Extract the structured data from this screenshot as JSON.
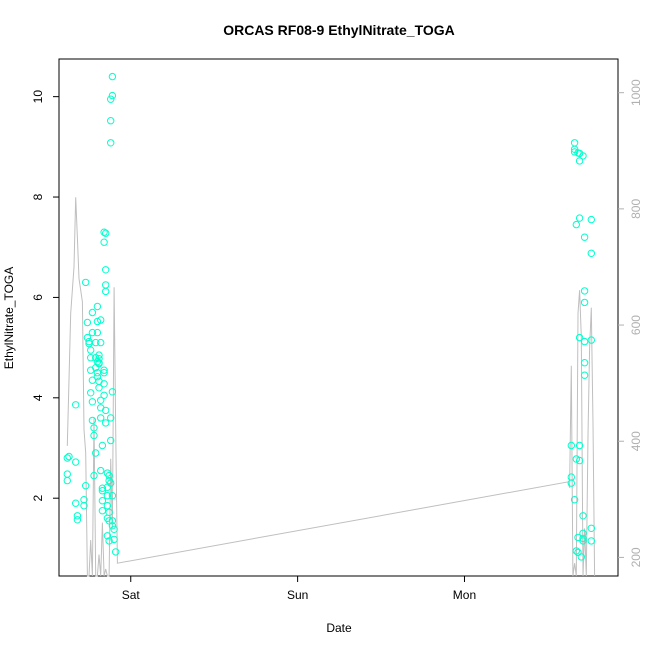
{
  "chart_data": {
    "type": "scatter",
    "title": "ORCAS RF08-9 EthylNitrate_TOGA",
    "xlabel": "Date",
    "ylabel": "EthylNitrate_TOGA",
    "x_unit": "days",
    "x_range": [
      -0.43,
      2.92
    ],
    "x_ticks": [
      {
        "value": 0,
        "label": "Sat"
      },
      {
        "value": 1,
        "label": "Sun"
      },
      {
        "value": 2,
        "label": "Mon"
      }
    ],
    "ylim": [
      0.45,
      10.75
    ],
    "y_ticks": [
      2,
      4,
      6,
      8,
      10
    ],
    "y2_ticks": [
      200,
      400,
      600,
      800,
      1000
    ],
    "y2_range": [
      1058,
      168
    ],
    "colors": {
      "points": "#00ffcc",
      "line": "#bfbfbf",
      "right_axis": "#b0b0b0"
    },
    "series": [
      {
        "type": "scatter",
        "points": [
          [
            -0.38,
            2.8
          ],
          [
            -0.38,
            2.48
          ],
          [
            -0.38,
            2.35
          ],
          [
            -0.37,
            2.83
          ],
          [
            -0.33,
            3.86
          ],
          [
            -0.33,
            2.72
          ],
          [
            -0.33,
            1.9
          ],
          [
            -0.32,
            1.65
          ],
          [
            -0.32,
            1.57
          ],
          [
            -0.28,
            1.97
          ],
          [
            -0.28,
            1.85
          ],
          [
            -0.27,
            2.25
          ],
          [
            -0.27,
            6.3
          ],
          [
            -0.26,
            5.5
          ],
          [
            -0.26,
            5.2
          ],
          [
            -0.25,
            5.12
          ],
          [
            -0.25,
            5.08
          ],
          [
            -0.24,
            4.95
          ],
          [
            -0.24,
            4.8
          ],
          [
            -0.24,
            4.55
          ],
          [
            -0.24,
            4.1
          ],
          [
            -0.23,
            5.3
          ],
          [
            -0.23,
            5.7
          ],
          [
            -0.23,
            4.35
          ],
          [
            -0.23,
            3.92
          ],
          [
            -0.23,
            3.55
          ],
          [
            -0.22,
            2.45
          ],
          [
            -0.22,
            3.4
          ],
          [
            -0.22,
            3.25
          ],
          [
            -0.21,
            2.9
          ],
          [
            -0.21,
            4.6
          ],
          [
            -0.21,
            4.8
          ],
          [
            -0.21,
            5.1
          ],
          [
            -0.2,
            5.3
          ],
          [
            -0.2,
            5.82
          ],
          [
            -0.2,
            5.52
          ],
          [
            -0.2,
            4.72
          ],
          [
            -0.2,
            4.5
          ],
          [
            -0.2,
            4.42
          ],
          [
            -0.19,
            4.85
          ],
          [
            -0.19,
            4.78
          ],
          [
            -0.19,
            4.7
          ],
          [
            -0.19,
            4.68
          ],
          [
            -0.19,
            4.33
          ],
          [
            -0.19,
            4.2
          ],
          [
            -0.18,
            5.55
          ],
          [
            -0.18,
            5.1
          ],
          [
            -0.18,
            3.95
          ],
          [
            -0.18,
            3.8
          ],
          [
            -0.18,
            3.6
          ],
          [
            -0.18,
            2.55
          ],
          [
            -0.17,
            3.05
          ],
          [
            -0.17,
            2.2
          ],
          [
            -0.17,
            2.15
          ],
          [
            -0.17,
            1.95
          ],
          [
            -0.17,
            1.75
          ],
          [
            -0.16,
            7.3
          ],
          [
            -0.16,
            7.1
          ],
          [
            -0.16,
            4.55
          ],
          [
            -0.16,
            4.5
          ],
          [
            -0.16,
            4.28
          ],
          [
            -0.16,
            4.05
          ],
          [
            -0.15,
            7.28
          ],
          [
            -0.15,
            6.55
          ],
          [
            -0.15,
            6.25
          ],
          [
            -0.15,
            6.12
          ],
          [
            -0.15,
            3.75
          ],
          [
            -0.15,
            3.5
          ],
          [
            -0.14,
            2.5
          ],
          [
            -0.14,
            2.22
          ],
          [
            -0.14,
            2.05
          ],
          [
            -0.14,
            1.85
          ],
          [
            -0.14,
            1.6
          ],
          [
            -0.14,
            1.25
          ],
          [
            -0.13,
            2.45
          ],
          [
            -0.13,
            2.35
          ],
          [
            -0.13,
            1.72
          ],
          [
            -0.13,
            1.55
          ],
          [
            -0.13,
            1.15
          ],
          [
            -0.12,
            9.95
          ],
          [
            -0.12,
            9.52
          ],
          [
            -0.12,
            9.08
          ],
          [
            -0.12,
            3.6
          ],
          [
            -0.12,
            3.15
          ],
          [
            -0.12,
            2.3
          ],
          [
            -0.11,
            10.4
          ],
          [
            -0.11,
            10.02
          ],
          [
            -0.11,
            4.12
          ],
          [
            -0.11,
            2.05
          ],
          [
            -0.11,
            1.55
          ],
          [
            -0.11,
            1.45
          ],
          [
            -0.1,
            1.38
          ],
          [
            -0.1,
            1.18
          ],
          [
            -0.09,
            0.93
          ],
          [
            2.64,
            3.05
          ],
          [
            2.64,
            2.42
          ],
          [
            2.64,
            2.3
          ],
          [
            2.66,
            1.97
          ],
          [
            2.66,
            9.08
          ],
          [
            2.66,
            8.95
          ],
          [
            2.66,
            8.9
          ],
          [
            2.67,
            7.45
          ],
          [
            2.67,
            2.78
          ],
          [
            2.67,
            0.95
          ],
          [
            2.68,
            8.88
          ],
          [
            2.68,
            1.22
          ],
          [
            2.68,
            0.92
          ],
          [
            2.69,
            8.87
          ],
          [
            2.69,
            8.72
          ],
          [
            2.69,
            7.58
          ],
          [
            2.69,
            5.2
          ],
          [
            2.69,
            3.05
          ],
          [
            2.69,
            2.75
          ],
          [
            2.7,
            0.83
          ],
          [
            2.71,
            8.82
          ],
          [
            2.71,
            1.65
          ],
          [
            2.71,
            1.3
          ],
          [
            2.71,
            1.2
          ],
          [
            2.71,
            1.15
          ],
          [
            2.72,
            7.2
          ],
          [
            2.72,
            6.13
          ],
          [
            2.72,
            5.9
          ],
          [
            2.72,
            5.12
          ],
          [
            2.72,
            4.7
          ],
          [
            2.72,
            4.45
          ],
          [
            2.76,
            7.55
          ],
          [
            2.76,
            6.88
          ],
          [
            2.76,
            5.15
          ],
          [
            2.76,
            1.4
          ],
          [
            2.76,
            1.15
          ]
        ]
      },
      {
        "type": "line",
        "axis": "right",
        "values": [
          [
            -0.38,
            392
          ],
          [
            -0.36,
            620
          ],
          [
            -0.34,
            700
          ],
          [
            -0.33,
            820
          ],
          [
            -0.32,
            750
          ],
          [
            -0.31,
            680
          ],
          [
            -0.29,
            640
          ],
          [
            -0.28,
            420
          ],
          [
            -0.27,
            380
          ],
          [
            -0.26,
            168
          ],
          [
            -0.25,
            168
          ],
          [
            -0.24,
            230
          ],
          [
            -0.23,
            168
          ],
          [
            -0.22,
            440
          ],
          [
            -0.21,
            168
          ],
          [
            -0.2,
            168
          ],
          [
            -0.19,
            205
          ],
          [
            -0.18,
            168
          ],
          [
            -0.17,
            260
          ],
          [
            -0.16,
            168
          ],
          [
            -0.15,
            180
          ],
          [
            -0.14,
            168
          ],
          [
            -0.13,
            168
          ],
          [
            -0.12,
            370
          ],
          [
            -0.11,
            250
          ],
          [
            -0.1,
            665
          ],
          [
            -0.09,
            420
          ],
          [
            -0.08,
            190
          ],
          [
            2.62,
            330
          ],
          [
            2.63,
            320
          ],
          [
            2.64,
            530
          ],
          [
            2.65,
            168
          ],
          [
            2.66,
            190
          ],
          [
            2.67,
            168
          ],
          [
            2.68,
            620
          ],
          [
            2.69,
            660
          ],
          [
            2.7,
            580
          ],
          [
            2.71,
            168
          ],
          [
            2.72,
            250
          ],
          [
            2.73,
            168
          ],
          [
            2.74,
            410
          ],
          [
            2.75,
            560
          ],
          [
            2.76,
            630
          ],
          [
            2.77,
            430
          ],
          [
            2.78,
            168
          ]
        ]
      }
    ]
  }
}
